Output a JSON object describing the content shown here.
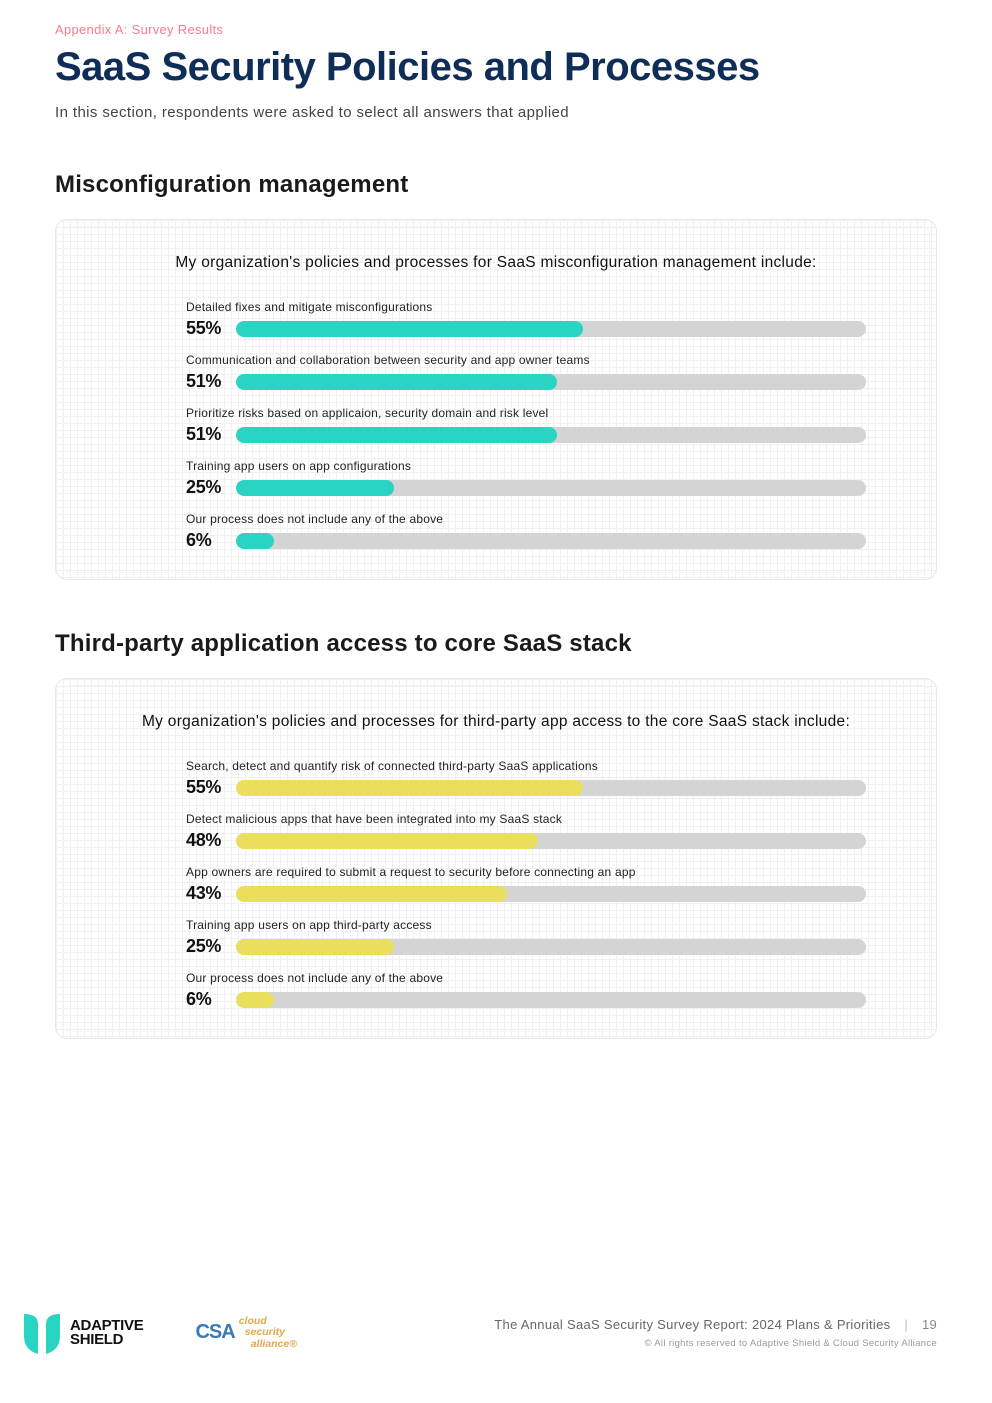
{
  "appendix_label": "Appendix A: Survey Results",
  "main_title": "SaaS Security Policies and Processes",
  "intro_text": "In this section, respondents were asked to select all answers that applied",
  "colors": {
    "appendix": "#ff7a8a",
    "title": "#0e2e58",
    "track": "#d4d4d4",
    "chart1_fill": "#2ad4c3",
    "chart2_fill": "#e9df5d",
    "footer_text": "#666666"
  },
  "sections": [
    {
      "section_title": "Misconfiguration management",
      "chart_title": "My organization's policies and processes for SaaS misconfiguration management include:",
      "fill_color": "#2ad4c3",
      "bars": [
        {
          "label": "Detailed fixes and mitigate misconfigurations",
          "pct": 55,
          "pct_text": "55%"
        },
        {
          "label": "Communication and collaboration between security and app owner teams",
          "pct": 51,
          "pct_text": "51%"
        },
        {
          "label": "Prioritize risks based on applicaion, security domain and risk level",
          "pct": 51,
          "pct_text": "51%"
        },
        {
          "label": "Training app users on app configurations",
          "pct": 25,
          "pct_text": "25%"
        },
        {
          "label": "Our process does not include any of the above",
          "pct": 6,
          "pct_text": "6%"
        }
      ]
    },
    {
      "section_title": "Third-party application access to core SaaS stack",
      "chart_title": "My organization's policies and processes for third-party app access to the core SaaS stack include:",
      "fill_color": "#e9df5d",
      "bars": [
        {
          "label": "Search, detect and quantify risk of connected third-party SaaS applications",
          "pct": 55,
          "pct_text": "55%"
        },
        {
          "label": "Detect malicious apps that have been integrated into my SaaS stack",
          "pct": 48,
          "pct_text": "48%"
        },
        {
          "label": "App owners are required to submit a request to security before connecting an app",
          "pct": 43,
          "pct_text": "43%"
        },
        {
          "label": "Training app users on app third-party access",
          "pct": 25,
          "pct_text": "25%"
        },
        {
          "label": "Our process does not include any of the above",
          "pct": 6,
          "pct_text": "6%"
        }
      ]
    }
  ],
  "footer": {
    "adaptive_shield_name": "ADAPTIVE\nSHIELD",
    "csa_mark": "CSA",
    "csa_text_1": "cloud",
    "csa_text_2": "security",
    "csa_text_3": "alliance®",
    "report_title": "The Annual SaaS Security Survey Report: 2024 Plans & Priorities",
    "page_number": "19",
    "copyright": "© All rights reserved to Adaptive Shield & Cloud Security Alliance"
  }
}
